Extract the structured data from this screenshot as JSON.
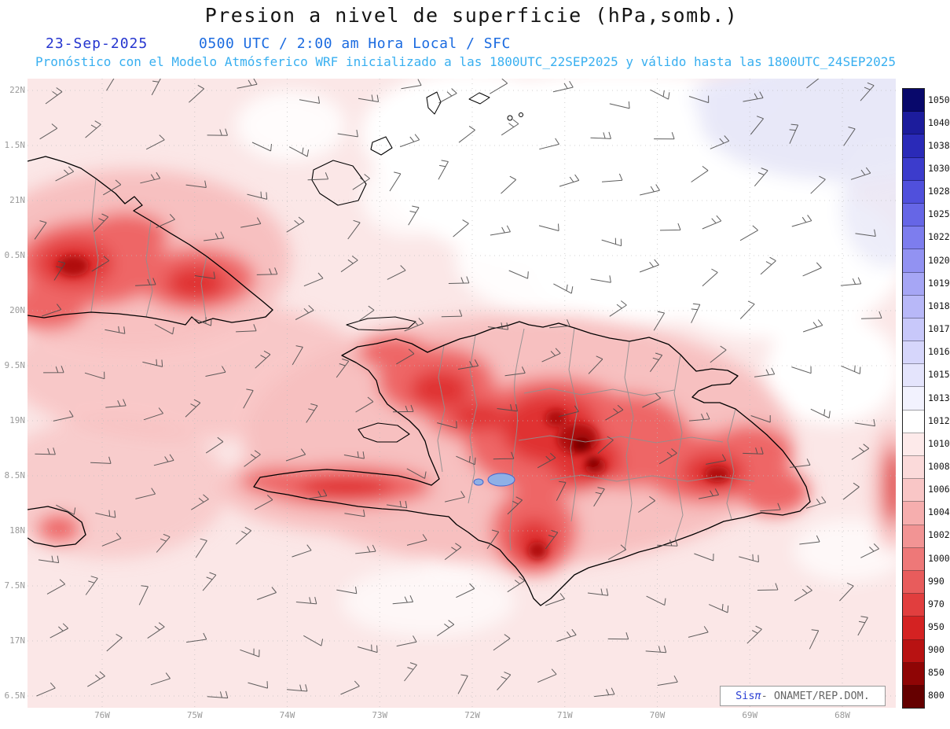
{
  "header": {
    "title": "Presion a nivel de superficie (hPa,somb.)",
    "date": "23-Sep-2025",
    "time_line": "0500 UTC / 2:00 am Hora Local / SFC",
    "forecast_line": "Pronóstico con el Modelo Atmósferico WRF inicializado a las 1800UTC_22SEP2025 y válido hasta las",
    "valid_until": "1800UTC_24SEP2025"
  },
  "map": {
    "lat_labels": [
      "22N",
      "1.5N",
      "21N",
      "0.5N",
      "20N",
      "9.5N",
      "19N",
      "8.5N",
      "18N",
      "7.5N",
      "17N",
      "6.5N"
    ],
    "lon_labels": [
      "76W",
      "75W",
      "74W",
      "73W",
      "72W",
      "71W",
      "70W",
      "69W",
      "68W"
    ],
    "units": "hPa"
  },
  "colorbar": {
    "labels": [
      "1050",
      "1040",
      "1038",
      "1030",
      "1028",
      "1025",
      "1022",
      "1020",
      "1019",
      "1018",
      "1017",
      "1016",
      "1015",
      "1013",
      "1012",
      "1010",
      "1008",
      "1006",
      "1004",
      "1002",
      "1000",
      "990",
      "970",
      "950",
      "900",
      "850",
      "800"
    ],
    "colors": [
      "#08086b",
      "#1c1c9c",
      "#2a2ab8",
      "#3c3ccc",
      "#5050dc",
      "#6666e6",
      "#7d7dee",
      "#9292f2",
      "#a6a6f5",
      "#b8b8f8",
      "#c8c8fa",
      "#d6d6fb",
      "#e4e4fc",
      "#f2f2fe",
      "#ffffff",
      "#fdeaea",
      "#fbdada",
      "#f9c6c6",
      "#f6aeae",
      "#f29494",
      "#ee7878",
      "#e85c5c",
      "#e13e3e",
      "#d42222",
      "#b81212",
      "#8f0505",
      "#650000"
    ],
    "accent_low_pressure": "#650000",
    "accent_high_pressure": "#08086b"
  },
  "watermark": {
    "brand": "Sis",
    "pi": "π",
    "suffix": "- ONAMET/REP.DOM."
  }
}
